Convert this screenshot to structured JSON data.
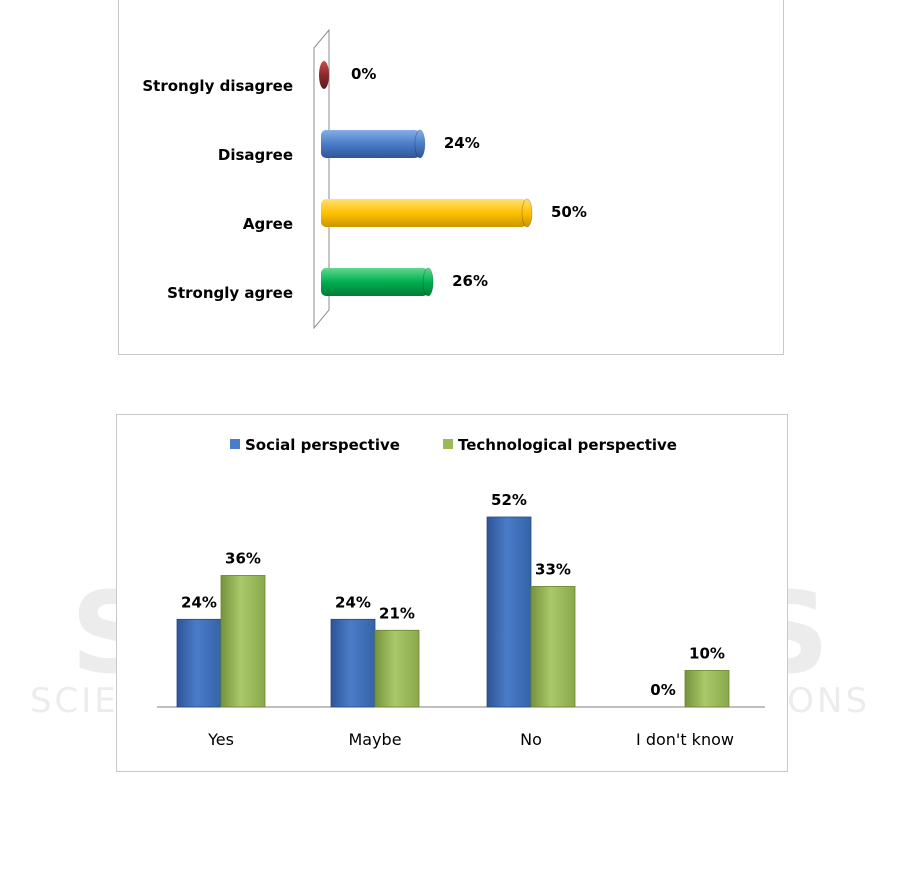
{
  "watermark": {
    "line1": "SCITEPRESS",
    "line2": "SCIENCE AND TECHNOLOGY PUBLICATIONS"
  },
  "chart_data": [
    {
      "type": "bar",
      "orientation": "horizontal",
      "categories": [
        "Strongly disagree",
        "Disagree",
        "Agree",
        "Strongly agree"
      ],
      "values": [
        0,
        24,
        50,
        26
      ],
      "value_labels": [
        "0%",
        "24%",
        "50%",
        "26%"
      ],
      "bar_colors": [
        "#8b2a2a",
        "#4a7cc9",
        "#ffc000",
        "#00b050"
      ],
      "xlim": [
        0,
        100
      ],
      "grid": false,
      "legend": "none"
    },
    {
      "type": "bar",
      "categories": [
        "Yes",
        "Maybe",
        "No",
        "I don't know"
      ],
      "series": [
        {
          "name": "Social perspective",
          "values": [
            24,
            24,
            52,
            0
          ],
          "labels": [
            "24%",
            "24%",
            "52%",
            "0%"
          ],
          "color": "#4a7cc9"
        },
        {
          "name": "Technological perspective",
          "values": [
            36,
            21,
            33,
            10
          ],
          "labels": [
            "36%",
            "21%",
            "33%",
            "10%"
          ],
          "color": "#9bbb59"
        }
      ],
      "ylim": [
        0,
        100
      ],
      "grid": false,
      "legend": "top"
    }
  ]
}
